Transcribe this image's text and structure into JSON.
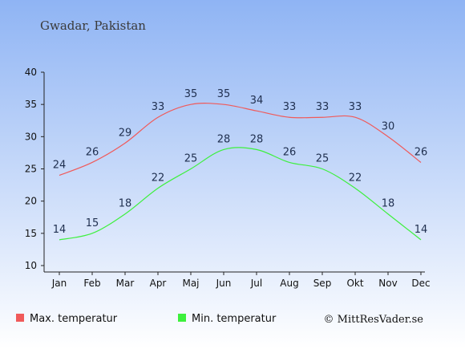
{
  "chart_data": {
    "type": "line",
    "title": "Gwadar, Pakistan",
    "categories": [
      "Jan",
      "Feb",
      "Mar",
      "Apr",
      "Maj",
      "Jun",
      "Jul",
      "Aug",
      "Sep",
      "Okt",
      "Nov",
      "Dec"
    ],
    "series": [
      {
        "name": "Max. temperatur",
        "values": [
          24,
          26,
          29,
          33,
          35,
          35,
          34,
          33,
          33,
          33,
          30,
          26
        ],
        "color": "#f05a5a"
      },
      {
        "name": "Min. temperatur",
        "values": [
          14,
          15,
          18,
          22,
          25,
          28,
          28,
          26,
          25,
          22,
          18,
          14
        ],
        "color": "#3df03d"
      }
    ],
    "ylim": [
      10,
      40
    ],
    "yticks": [
      10,
      15,
      20,
      25,
      30,
      35,
      40
    ],
    "xlabel": "",
    "ylabel": "",
    "grid": false,
    "legend_position": "bottom-left",
    "background_gradient": [
      "#8fb4f4",
      "#ffffff"
    ]
  },
  "footer": {
    "credit": "© MittResVader.se"
  }
}
